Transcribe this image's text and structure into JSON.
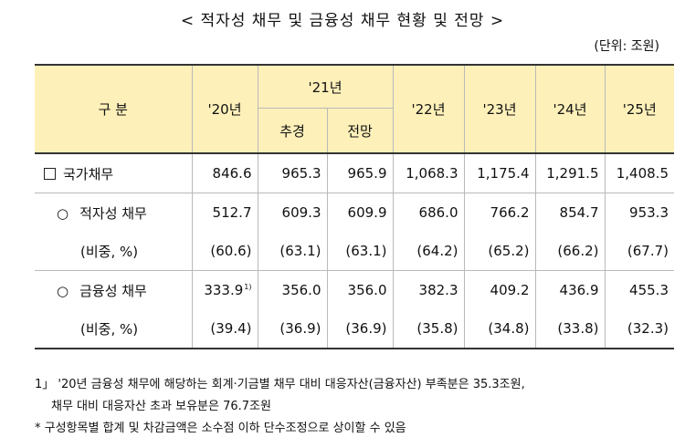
{
  "title": "< 적자성 채무 및 금융성 채무 현황 및 전망 >",
  "unit": "(단위: 조원)",
  "table": {
    "header_category": "구 분",
    "header_y20": "'20년",
    "header_y21": "'21년",
    "header_y21_sub1": "추경",
    "header_y21_sub2": "전망",
    "header_y22": "'22년",
    "header_y23": "'23년",
    "header_y24": "'24년",
    "header_y25": "'25년",
    "rows": [
      {
        "marker": "□",
        "label": "국가채무",
        "values": [
          "846.6",
          "965.3",
          "965.9",
          "1,068.3",
          "1,175.4",
          "1,291.5",
          "1,408.5"
        ]
      },
      {
        "marker": "○",
        "label": "적자성 채무",
        "values": [
          "512.7",
          "609.3",
          "609.9",
          "686.0",
          "766.2",
          "854.7",
          "953.3"
        ]
      },
      {
        "marker": "",
        "label": "(비중, %)",
        "values": [
          "(60.6)",
          "(63.1)",
          "(63.1)",
          "(64.2)",
          "(65.2)",
          "(66.2)",
          "(67.7)"
        ]
      },
      {
        "marker": "○",
        "label": "금융성 채무",
        "values": [
          "333.9",
          "356.0",
          "356.0",
          "382.3",
          "409.2",
          "436.9",
          "455.3"
        ],
        "footnote_mark": "1)"
      },
      {
        "marker": "",
        "label": "(비중, %)",
        "values": [
          "(39.4)",
          "(36.9)",
          "(36.9)",
          "(35.8)",
          "(34.8)",
          "(33.8)",
          "(32.3)"
        ]
      }
    ]
  },
  "notes": {
    "n1_line1": "1」 '20년 금융성 채무에 해당하는 회계·기금별 채무 대비 대응자산(금융자산) 부족분은 35.3조원,",
    "n1_line2": "채무 대비 대응자산 초과 보유분은 76.7조원",
    "n2": "* 구성항목별 합계 및 차감금액은 소수점 이하 단수조정으로 상이할 수 있음"
  }
}
